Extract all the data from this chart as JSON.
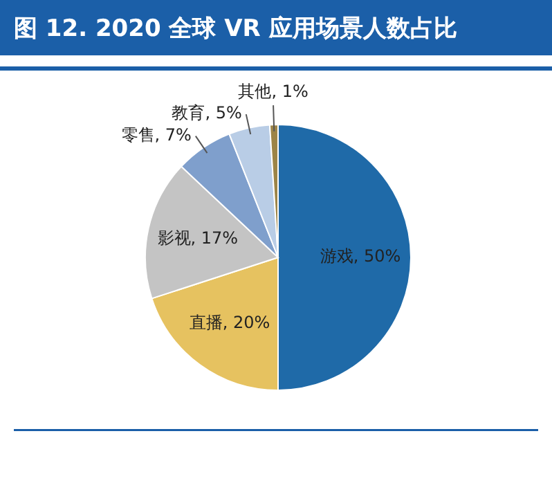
{
  "chart_data": {
    "type": "pie",
    "title": "图 12. 2020 全球 VR 应用场景人数占比",
    "categories": [
      "游戏",
      "直播",
      "影视",
      "零售",
      "教育",
      "其他"
    ],
    "values": [
      50,
      20,
      17,
      7,
      5,
      1
    ],
    "colors": [
      "#1f6aa8",
      "#e6c260",
      "#c4c4c4",
      "#7f9fcc",
      "#b9cde6",
      "#9c8447"
    ],
    "value_labels": [
      ", 50%",
      ", 20%",
      ", 17%",
      ", 7%",
      ", 5%",
      ", 1%"
    ]
  }
}
